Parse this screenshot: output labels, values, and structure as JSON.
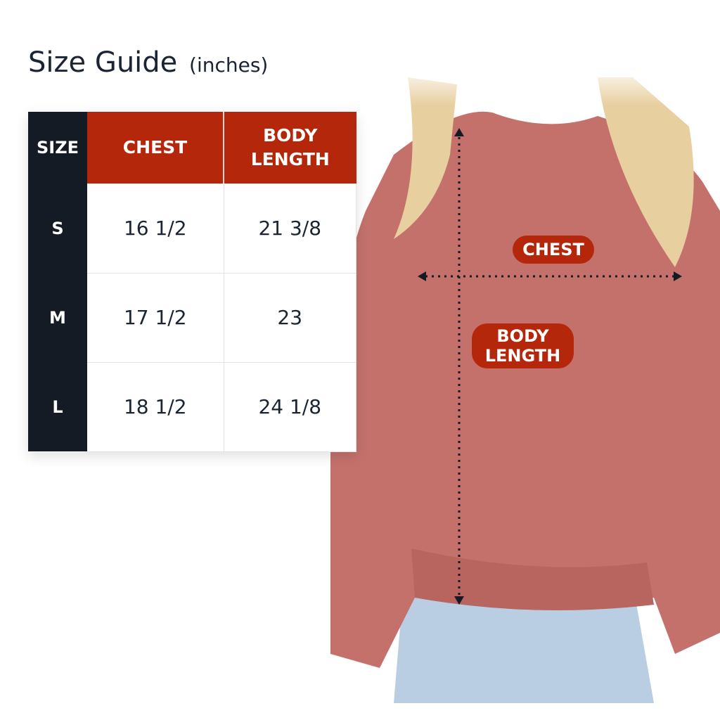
{
  "title": {
    "main": "Size Guide",
    "unit": "(inches)"
  },
  "table": {
    "headers": {
      "size": "SIZE",
      "chest": "CHEST",
      "body_length_1": "BODY",
      "body_length_2": "LENGTH"
    },
    "rows": [
      {
        "size": "S",
        "chest": "16 1/2",
        "body_length": "21 3/8"
      },
      {
        "size": "M",
        "chest": "17 1/2",
        "body_length": "23"
      },
      {
        "size": "L",
        "chest": "18 1/2",
        "body_length": "24 1/8"
      }
    ]
  },
  "labels": {
    "chest": "CHEST",
    "body_length_1": "BODY",
    "body_length_2": "LENGTH"
  },
  "colors": {
    "accent": "#b5270b",
    "dark": "#141b24",
    "sweatshirt": "#c4716c"
  }
}
